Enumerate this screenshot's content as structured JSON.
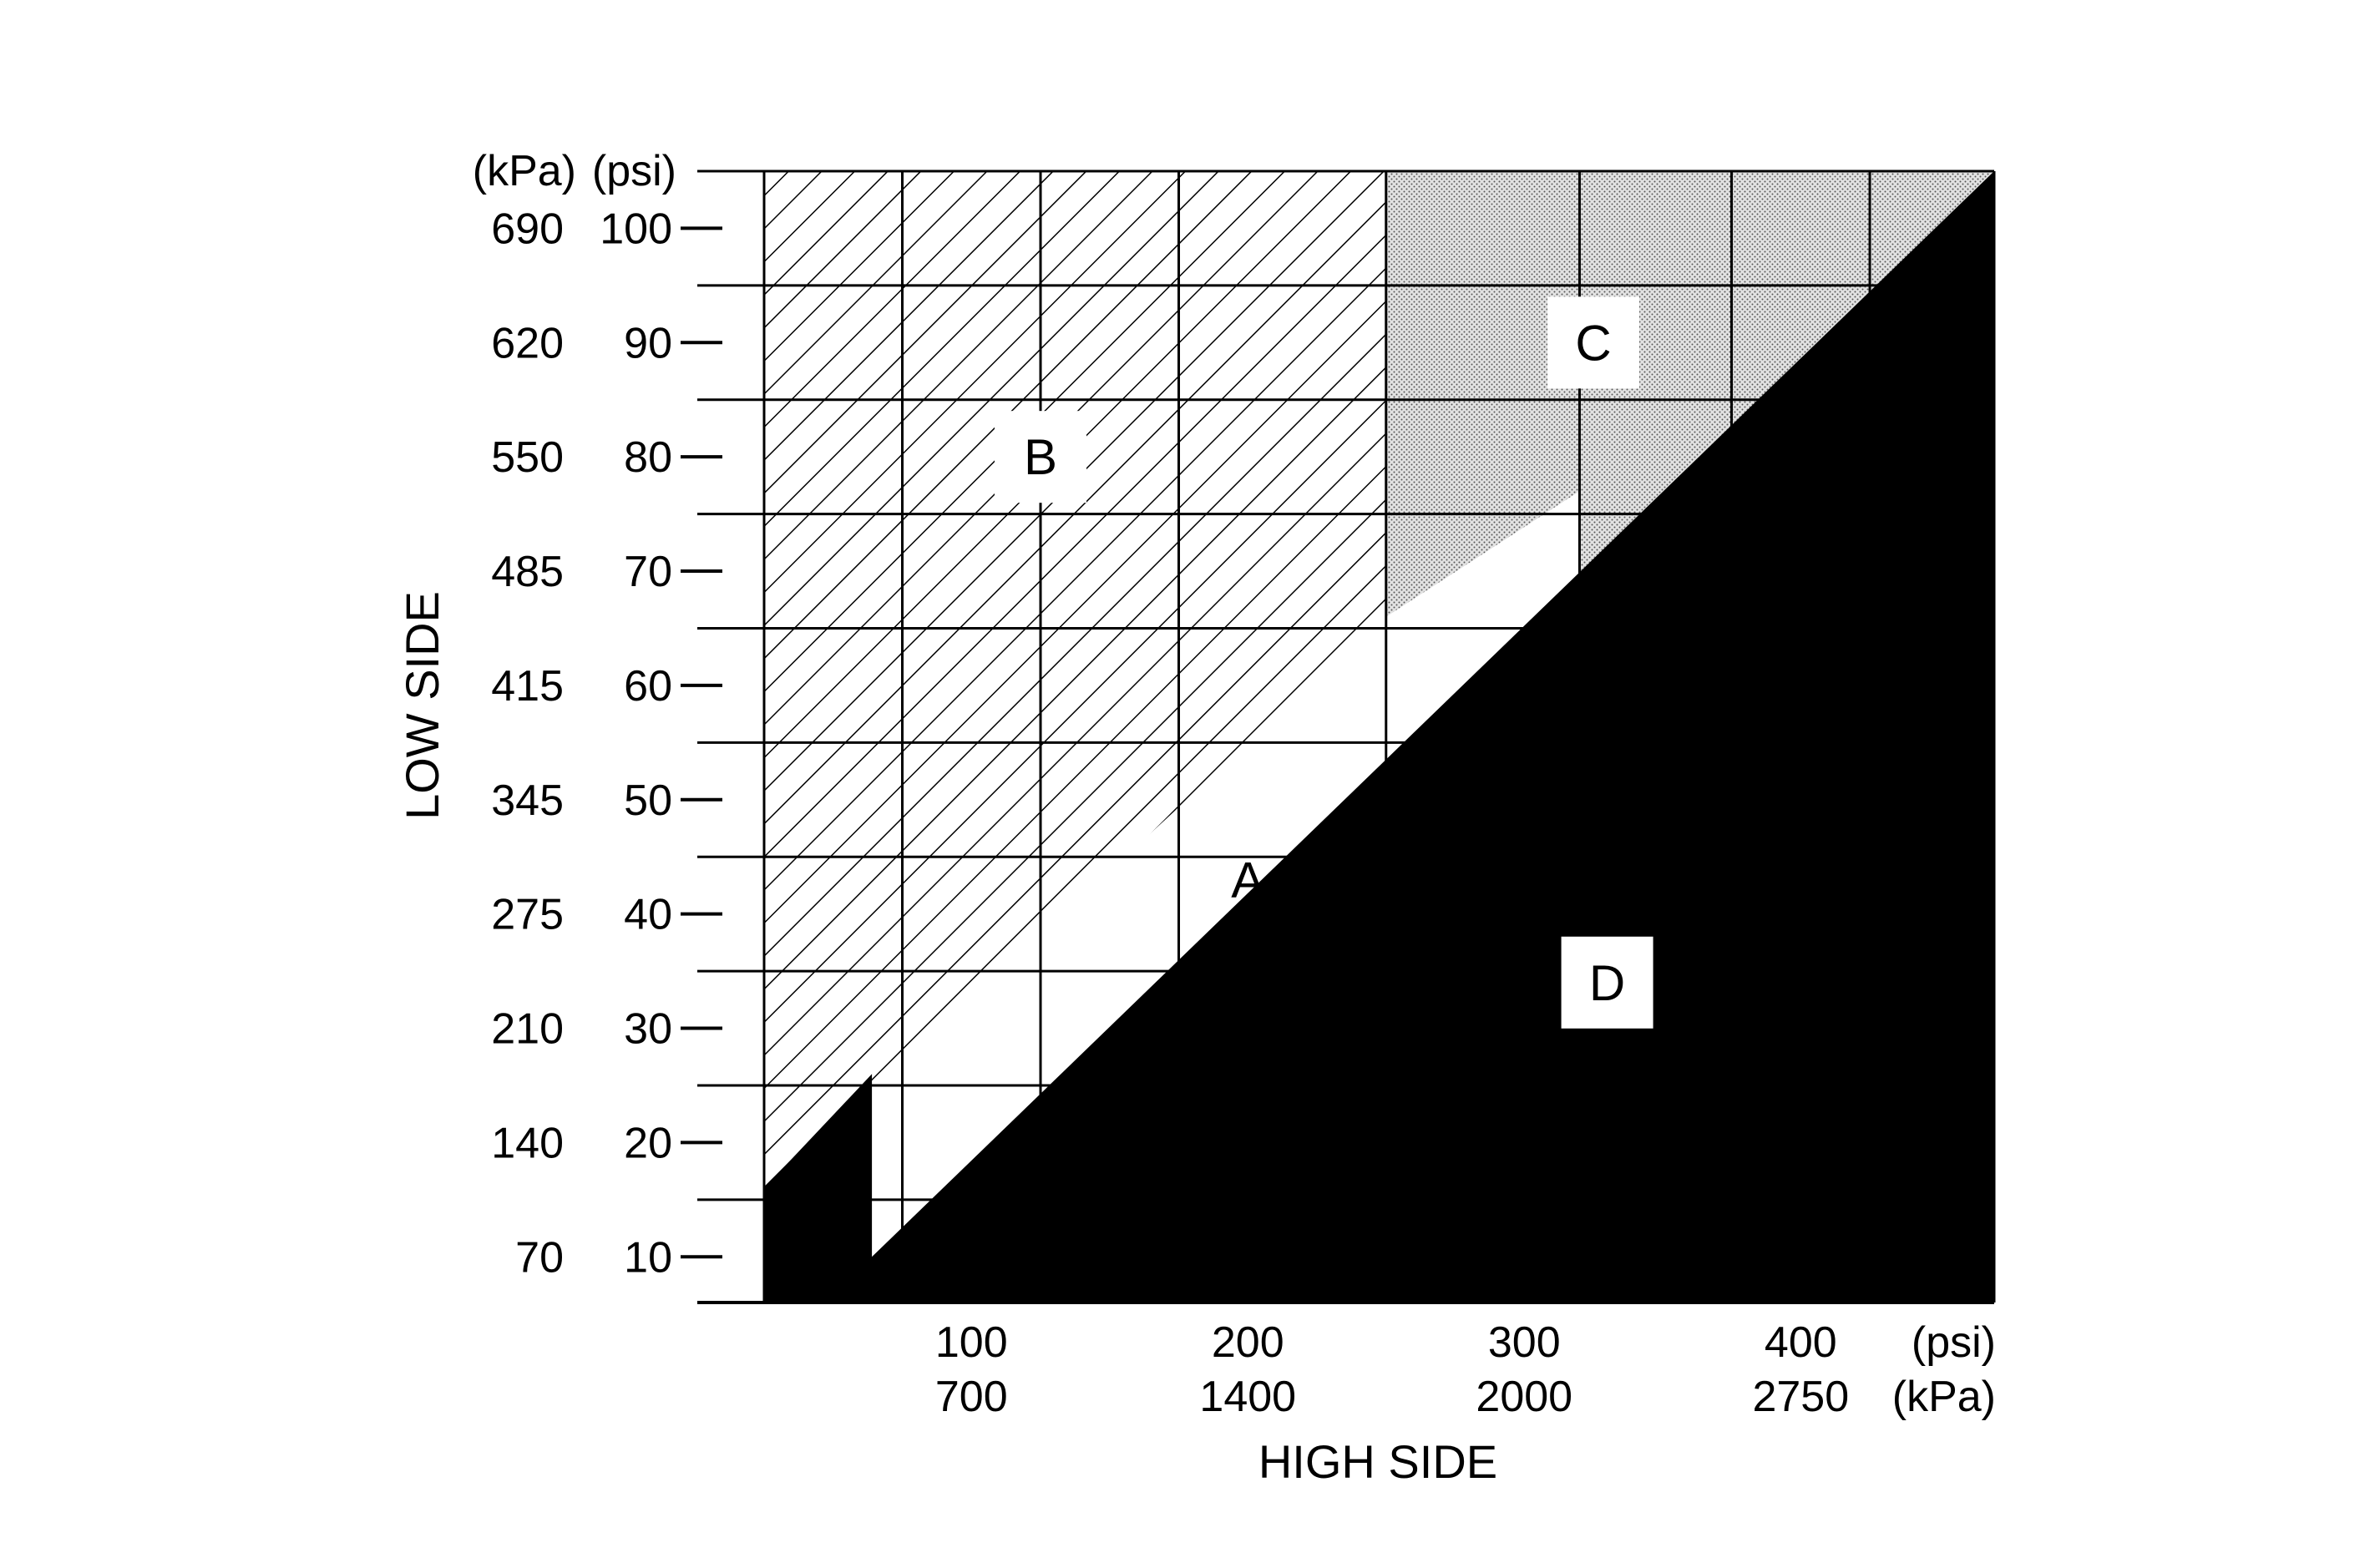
{
  "chart_data": {
    "type": "area",
    "xlabel": "HIGH SIDE",
    "ylabel": "LOW SIDE",
    "x_units": {
      "primary": "(psi)",
      "secondary": "(kPa)"
    },
    "y_units": {
      "primary": "(psi)",
      "secondary": "(kPa)"
    },
    "x_ticks": [
      {
        "psi": "100",
        "kpa": "700",
        "value": 100
      },
      {
        "psi": "200",
        "kpa": "1400",
        "value": 200
      },
      {
        "psi": "300",
        "kpa": "2000",
        "value": 300
      },
      {
        "psi": "400",
        "kpa": "2750",
        "value": 400
      }
    ],
    "y_ticks": [
      {
        "psi": "10",
        "kpa": "70",
        "value": 10
      },
      {
        "psi": "20",
        "kpa": "140",
        "value": 20
      },
      {
        "psi": "30",
        "kpa": "210",
        "value": 30
      },
      {
        "psi": "40",
        "kpa": "275",
        "value": 40
      },
      {
        "psi": "50",
        "kpa": "345",
        "value": 50
      },
      {
        "psi": "60",
        "kpa": "415",
        "value": 60
      },
      {
        "psi": "70",
        "kpa": "485",
        "value": 70
      },
      {
        "psi": "80",
        "kpa": "550",
        "value": 80
      },
      {
        "psi": "90",
        "kpa": "620",
        "value": 90
      },
      {
        "psi": "100",
        "kpa": "690",
        "value": 100
      }
    ],
    "xlim": [
      25,
      470
    ],
    "ylim": [
      6,
      105
    ],
    "grid": true,
    "region_labels": [
      {
        "label": "A",
        "x": 200,
        "y": 43
      },
      {
        "label": "B",
        "x": 125,
        "y": 80
      },
      {
        "label": "C",
        "x": 325,
        "y": 90
      },
      {
        "label": "D",
        "x": 330,
        "y": 34
      }
    ],
    "regions": [
      {
        "label": "A",
        "fill": "white",
        "polygon": [
          [
            75,
            8
          ],
          [
            85,
            28
          ],
          [
            85,
            10
          ],
          [
            320,
            77
          ],
          [
            320,
            61
          ],
          [
            25,
            8
          ]
        ]
      },
      {
        "label": "B",
        "fill": "diagonal-hatch",
        "polygon": [
          [
            25,
            105
          ],
          [
            250,
            105
          ],
          [
            250,
            66
          ],
          [
            25,
            16
          ]
        ]
      },
      {
        "label": "C",
        "fill": "stipple",
        "polygon": [
          [
            250,
            105
          ],
          [
            470,
            105
          ],
          [
            320,
            61
          ],
          [
            320,
            77
          ],
          [
            250,
            66
          ]
        ]
      },
      {
        "label": "D",
        "fill": "solid",
        "polygon": [
          [
            25,
            16
          ],
          [
            64,
            26
          ],
          [
            64,
            10
          ],
          [
            470,
            105
          ],
          [
            470,
            6
          ],
          [
            25,
            6
          ]
        ]
      }
    ],
    "colors": {
      "ink": "#000000",
      "paper": "#ffffff",
      "stipple": "#dcdcdc"
    }
  }
}
